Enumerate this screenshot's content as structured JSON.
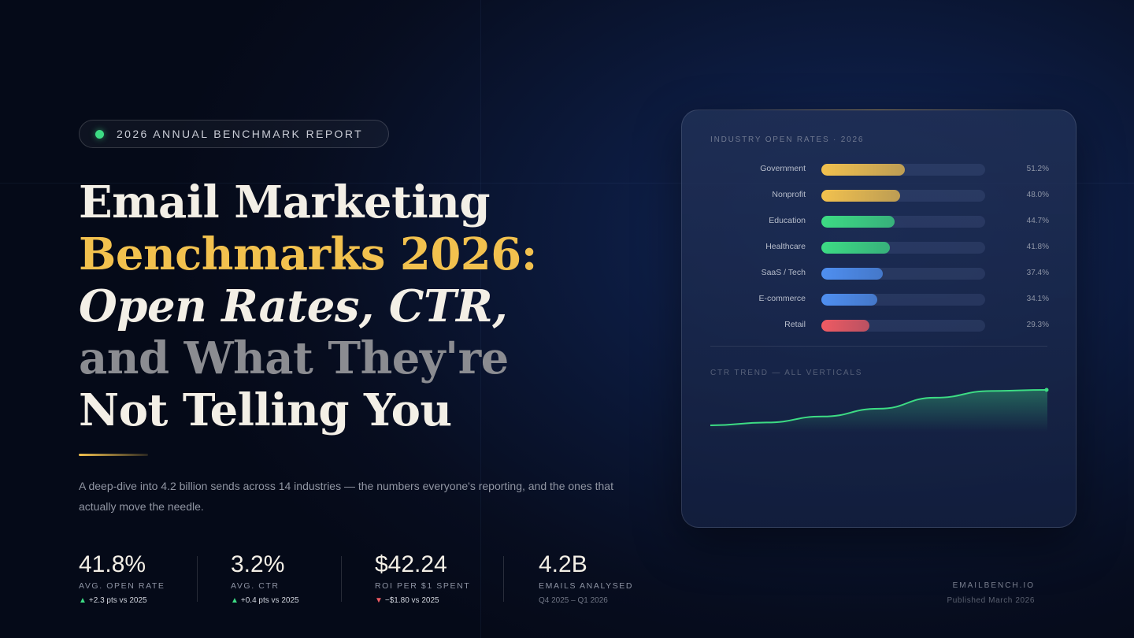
{
  "badge": {
    "label": "2026 ANNUAL BENCHMARK REPORT"
  },
  "headline": {
    "line1": "Email Marketing",
    "line2": "Benchmarks 2026:",
    "line3_italic": "Open Rates",
    "line3_rest": ", CTR,",
    "line4": "and What They're",
    "line5": "Not Telling You"
  },
  "subtitle": "A deep-dive into 4.2 billion sends across 14 industries — the numbers everyone's reporting, and the ones that actually move the needle.",
  "stats": [
    {
      "value": "41.8%",
      "label": "AVG. OPEN RATE",
      "change": "+2.3 pts vs 2025",
      "direction": "up"
    },
    {
      "value": "3.2%",
      "label": "AVG. CTR",
      "change": "+0.4 pts vs 2025",
      "direction": "up"
    },
    {
      "value": "$42.24",
      "label": "ROI PER $1 SPENT",
      "change": "−$1.80 vs 2025",
      "direction": "down"
    },
    {
      "value": "4.2B",
      "label": "EMAILS ANALYSED",
      "change": "Q4 2025 – Q1 2026",
      "direction": "none"
    }
  ],
  "footer": {
    "brand": "EMAILBENCH.IO",
    "published": "Published March 2026"
  },
  "colors": {
    "accent": "#f2c14e",
    "positive": "#3ddc84",
    "negative": "#ef5b63",
    "blue": "#4f8ff0"
  },
  "panel": {
    "bars_title": "INDUSTRY OPEN RATES · 2026",
    "trend_title": "CTR TREND — ALL VERTICALS"
  },
  "chart_data": [
    {
      "type": "bar",
      "title": "INDUSTRY OPEN RATES · 2026",
      "categories": [
        "Government",
        "Nonprofit",
        "Education",
        "Healthcare",
        "SaaS / Tech",
        "E-commerce",
        "Retail"
      ],
      "values": [
        51.2,
        48.0,
        44.7,
        41.8,
        37.4,
        34.1,
        29.3
      ],
      "value_labels": [
        "51.2%",
        "48.0%",
        "44.7%",
        "41.8%",
        "37.4%",
        "34.1%",
        "29.3%"
      ],
      "bar_colors": [
        "#f2c14e",
        "#f2c14e",
        "#3ddc84",
        "#3ddc84",
        "#4f8ff0",
        "#4f8ff0",
        "#ef5b63"
      ],
      "xlim": [
        0,
        100
      ]
    },
    {
      "type": "area",
      "title": "CTR TREND — ALL VERTICALS",
      "values": [
        0.0,
        0.08,
        0.25,
        0.47,
        0.78,
        0.97,
        1.0
      ],
      "line_color": "#3ddc84",
      "grid": false
    }
  ]
}
